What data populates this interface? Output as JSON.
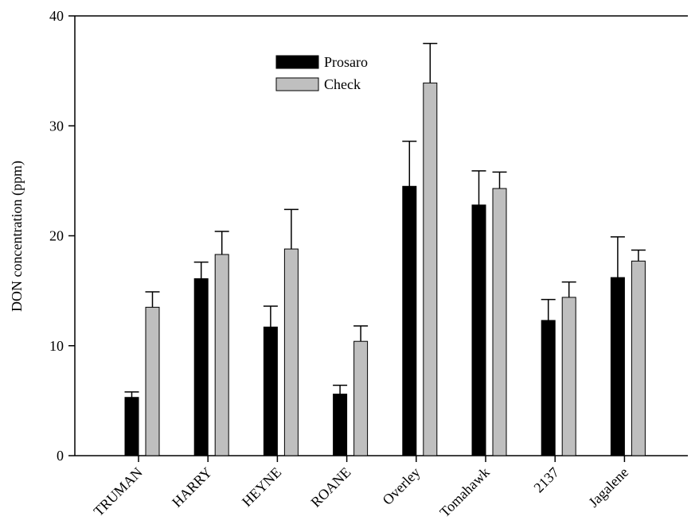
{
  "chart_data": {
    "type": "bar",
    "title": "",
    "xlabel": "",
    "ylabel": "DON concentration (ppm)",
    "ylim": [
      0,
      40
    ],
    "yticks": [
      0,
      10,
      20,
      30,
      40
    ],
    "grid": false,
    "legend_position": "top-center",
    "categories": [
      "TRUMAN",
      "HARRY",
      "HEYNE",
      "ROANE",
      "Overley",
      "Tomahawk",
      "2137",
      "Jagalene"
    ],
    "series": [
      {
        "name": "Prosaro",
        "color": "#000000",
        "values": [
          5.3,
          16.1,
          11.7,
          5.6,
          24.5,
          22.8,
          12.3,
          16.2
        ],
        "error": [
          0.5,
          1.5,
          1.9,
          0.8,
          4.1,
          3.1,
          1.9,
          3.7
        ]
      },
      {
        "name": "Check",
        "color": "#bfbfbf",
        "values": [
          13.5,
          18.3,
          18.8,
          10.4,
          33.9,
          24.3,
          14.4,
          17.7
        ],
        "error": [
          1.4,
          2.1,
          3.6,
          1.4,
          3.6,
          1.5,
          1.4,
          1.0
        ]
      }
    ]
  }
}
